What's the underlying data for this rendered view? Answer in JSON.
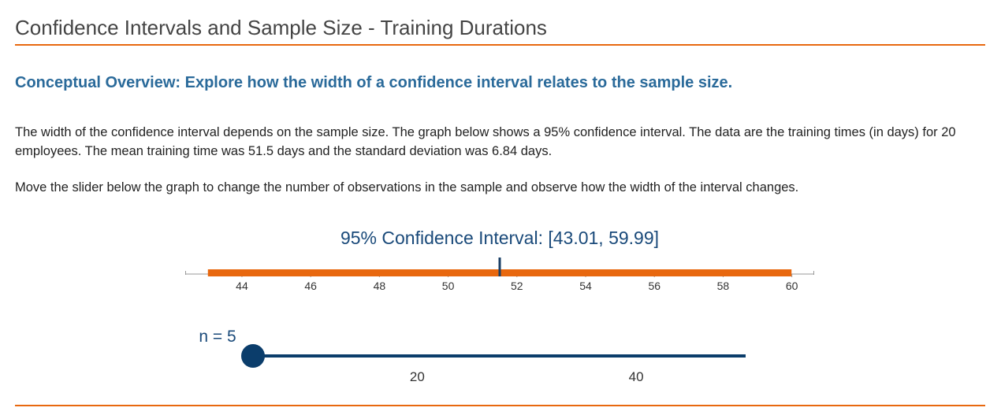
{
  "header": {
    "title": "Confidence Intervals and Sample Size - Training Durations"
  },
  "overview": "Conceptual Overview: Explore how the width of a confidence interval relates to the sample size.",
  "paragraphs": [
    "The width of the confidence interval depends on the sample size. The graph below shows a 95% confidence interval. The data are the training times (in days) for 20 employees. The mean training time was 51.5 days and the standard deviation was 6.84 days.",
    "Move the slider below the graph to change the number of observations in the sample and observe how the width of the interval changes."
  ],
  "chart_data": {
    "type": "interval",
    "title": "95% Confidence Interval: [43.01, 59.99]",
    "lower": 43.01,
    "upper": 59.99,
    "mean": 51.5,
    "color": "#e8680f",
    "mean_color": "#1a3f66",
    "xlim": [
      42.35,
      60.65
    ],
    "xticks": [
      44,
      46,
      48,
      50,
      52,
      54,
      56,
      58,
      60
    ]
  },
  "slider": {
    "label": "n = 5",
    "value": 5,
    "range": [
      5,
      50
    ],
    "ticks": [
      20,
      40
    ],
    "color": "#0b3d6b"
  }
}
